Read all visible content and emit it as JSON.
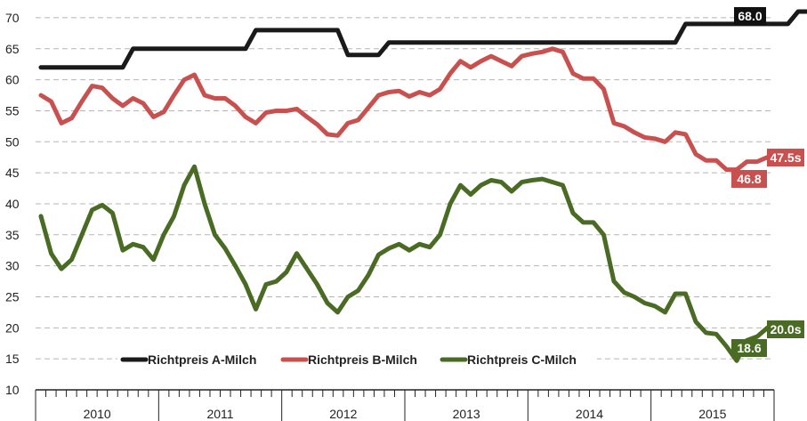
{
  "chart_data": {
    "type": "line",
    "title": "",
    "xlabel": "",
    "ylabel": "",
    "ylim": [
      10,
      72
    ],
    "yticks": [
      10,
      15,
      20,
      25,
      30,
      35,
      40,
      45,
      50,
      55,
      60,
      65,
      70
    ],
    "ytick_labels": [
      "10",
      "15",
      "20",
      "25",
      "30",
      "35",
      "40",
      "45",
      "50",
      "55",
      "60",
      "65",
      "70"
    ],
    "years": [
      "2010",
      "2011",
      "2012",
      "2013",
      "2014",
      "2015"
    ],
    "x_start": "2010-01",
    "x_end": "2015-12",
    "grid": "horizontal dashed",
    "legend_position": "bottom-center",
    "series": [
      {
        "name": "Richtpreis A-Milch",
        "color": "#1a1a1a",
        "values": [
          62,
          62,
          62,
          62,
          62,
          62,
          62,
          62,
          62,
          65,
          65,
          65,
          65,
          65,
          65,
          65,
          65,
          65,
          65,
          65,
          65,
          68,
          68,
          68,
          68,
          68,
          68,
          68,
          68,
          68,
          64,
          64,
          64,
          64,
          66,
          66,
          66,
          66,
          66,
          66,
          66,
          66,
          66,
          66,
          66,
          66,
          66,
          66,
          66,
          66,
          66,
          66,
          66,
          66,
          66,
          66,
          66,
          66,
          66,
          66,
          66,
          66,
          66,
          69,
          69,
          69,
          69,
          69,
          69,
          69,
          69,
          69,
          69,
          69,
          71,
          71,
          71,
          71,
          71,
          71,
          71,
          71,
          71,
          71,
          71,
          71,
          71,
          71,
          71,
          71,
          71,
          71,
          71,
          71,
          68,
          68,
          68,
          68,
          68,
          68,
          68,
          68,
          68,
          68,
          68,
          68,
          68,
          68,
          68,
          68,
          68,
          68,
          68,
          68,
          68,
          68,
          68,
          68,
          68,
          68,
          68,
          68,
          68,
          68,
          68,
          68
        ]
      },
      {
        "name": "Richtpreis B-Milch",
        "color": "#c8504e",
        "values": [
          57.5,
          56.5,
          53,
          53.8,
          56.5,
          59,
          58.7,
          57,
          55.8,
          57,
          56.2,
          54,
          54.8,
          57.5,
          60,
          60.8,
          57.5,
          57,
          57,
          55.8,
          54,
          53,
          54.7,
          55,
          55,
          55.3,
          54,
          52.8,
          51.2,
          51,
          53,
          53.5,
          55.5,
          57.5,
          58,
          58.2,
          57.3,
          58,
          57.5,
          58.5,
          61,
          63,
          62,
          63,
          63.8,
          63,
          62.2,
          63.8,
          64.2,
          64.5,
          65,
          64.5,
          61,
          60.2,
          60.2,
          58.5,
          53,
          52.5,
          51.5,
          50.7,
          50.5,
          50,
          51.5,
          51.2,
          48,
          47,
          47,
          45.5,
          45.5,
          46.8,
          46.8,
          47.5
        ],
        "end_labels": [
          "47.5s",
          "46.8"
        ]
      },
      {
        "name": "Richtpreis C-Milch",
        "color": "#4a6b24",
        "values": [
          38,
          32,
          29.5,
          31,
          35,
          39,
          39.8,
          38.5,
          32.5,
          33.5,
          33,
          31,
          35,
          38,
          43,
          46,
          40,
          35,
          32.8,
          30,
          27,
          23,
          27,
          27.5,
          29,
          32,
          29.5,
          27,
          24,
          22.5,
          25,
          26,
          28.5,
          31.8,
          32.8,
          33.5,
          32.5,
          33.5,
          33,
          35,
          40,
          43,
          41.5,
          43,
          43.8,
          43.5,
          42,
          43.5,
          43.8,
          44,
          43.5,
          43,
          38.5,
          37,
          37,
          35,
          27.5,
          25.7,
          25,
          24,
          23.5,
          22.5,
          25.5,
          25.5,
          21,
          19.2,
          19,
          17,
          14.7,
          18,
          18.6,
          20
        ],
        "end_labels": [
          "20.0s",
          "18.6"
        ]
      }
    ],
    "end_labels": [
      {
        "series": "Richtpreis A-Milch",
        "text": "68.0",
        "color": "#111111"
      },
      {
        "series": "Richtpreis B-Milch",
        "text": "47.5s",
        "color": "#c8504e"
      },
      {
        "series": "Richtpreis B-Milch",
        "text": "46.8",
        "color": "#c8504e"
      },
      {
        "series": "Richtpreis C-Milch",
        "text": "20.0s",
        "color": "#4a6b24"
      },
      {
        "series": "Richtpreis C-Milch",
        "text": "18.6",
        "color": "#4a6b24"
      }
    ]
  }
}
